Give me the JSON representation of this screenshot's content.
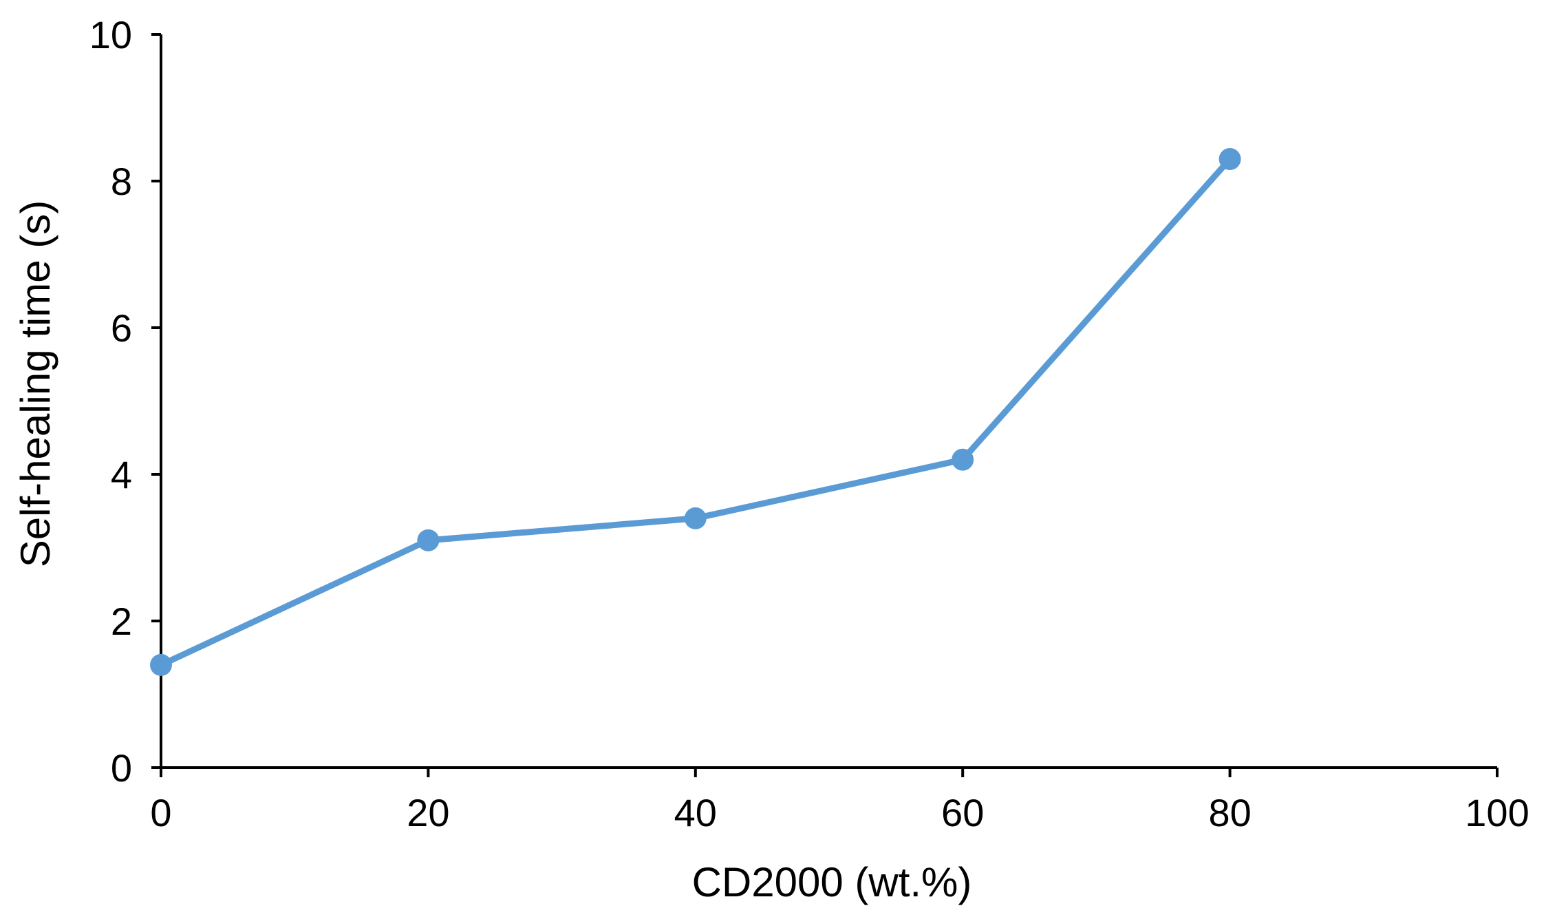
{
  "chart_data": {
    "type": "line",
    "title": "",
    "xlabel": "CD2000  (wt.%)",
    "ylabel": "Self-healing  time (s)",
    "xlim": [
      0,
      100
    ],
    "ylim": [
      0,
      10
    ],
    "x_ticks": [
      0,
      20,
      40,
      60,
      80,
      100
    ],
    "y_ticks": [
      0,
      2,
      4,
      6,
      8,
      10
    ],
    "x_tick_labels": [
      "0",
      "20",
      "40",
      "60",
      "80",
      "100"
    ],
    "y_tick_labels": [
      "0",
      "2",
      "4",
      "6",
      "8",
      "10"
    ],
    "grid": false,
    "legend": "none",
    "series": [
      {
        "color": "#5b9bd5",
        "marker": "circle",
        "x": [
          0,
          20,
          40,
          60,
          80
        ],
        "y": [
          1.4,
          3.1,
          3.4,
          4.2,
          8.3
        ]
      }
    ]
  }
}
